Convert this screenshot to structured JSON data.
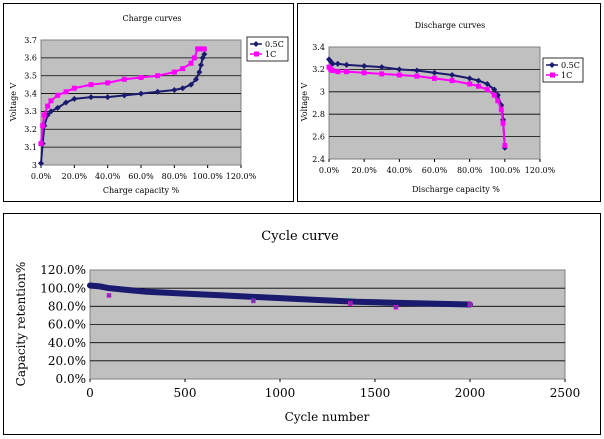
{
  "chart_data": [
    {
      "type": "line",
      "title": "Charge curves",
      "xlabel": "Charge capacity %",
      "ylabel": "Voltage V",
      "xlim": [
        0,
        1.2
      ],
      "ylim": [
        3.0,
        3.7
      ],
      "x_ticks": [
        "0.0%",
        "20.0%",
        "40.0%",
        "60.0%",
        "80.0%",
        "100.0%",
        "120.0%"
      ],
      "y_ticks": [
        "3",
        "3.1",
        "3.2",
        "3.3",
        "3.4",
        "3.5",
        "3.6",
        "3.7"
      ],
      "grid": true,
      "legend_position": "top-right",
      "series": [
        {
          "name": "0.5C",
          "color": "#1a1a6e",
          "marker": "diamond",
          "x": [
            0.0,
            0.01,
            0.02,
            0.04,
            0.06,
            0.1,
            0.15,
            0.2,
            0.3,
            0.4,
            0.5,
            0.6,
            0.7,
            0.8,
            0.85,
            0.9,
            0.93,
            0.95,
            0.96,
            0.97,
            0.98
          ],
          "y": [
            3.01,
            3.12,
            3.22,
            3.28,
            3.3,
            3.32,
            3.35,
            3.37,
            3.38,
            3.38,
            3.39,
            3.4,
            3.41,
            3.42,
            3.43,
            3.45,
            3.48,
            3.52,
            3.56,
            3.6,
            3.62
          ]
        },
        {
          "name": "1C",
          "color": "#ff00ff",
          "marker": "square",
          "x": [
            0.0,
            0.01,
            0.02,
            0.04,
            0.06,
            0.1,
            0.15,
            0.2,
            0.3,
            0.4,
            0.5,
            0.6,
            0.7,
            0.8,
            0.85,
            0.9,
            0.92,
            0.94,
            0.96,
            0.98
          ],
          "y": [
            3.12,
            3.22,
            3.28,
            3.33,
            3.36,
            3.39,
            3.41,
            3.43,
            3.45,
            3.46,
            3.48,
            3.49,
            3.5,
            3.52,
            3.54,
            3.57,
            3.6,
            3.65,
            3.65,
            3.65
          ]
        }
      ]
    },
    {
      "type": "line",
      "title": "Discharge curves",
      "xlabel": "Discharge capacity %",
      "ylabel": "Voltage V",
      "xlim": [
        0,
        1.2
      ],
      "ylim": [
        2.4,
        3.4
      ],
      "x_ticks": [
        "0.0%",
        "20.0%",
        "40.0%",
        "60.0%",
        "80.0%",
        "100.0%",
        "120.0%"
      ],
      "y_ticks": [
        "2.4",
        "2.6",
        "2.8",
        "3",
        "3.2",
        "3.4"
      ],
      "grid": true,
      "legend_position": "top-right",
      "series": [
        {
          "name": "0.5C",
          "color": "#1a1a6e",
          "marker": "diamond",
          "x": [
            0.0,
            0.01,
            0.02,
            0.05,
            0.1,
            0.2,
            0.3,
            0.4,
            0.5,
            0.6,
            0.7,
            0.8,
            0.85,
            0.9,
            0.94,
            0.96,
            0.98,
            0.99,
            1.0
          ],
          "y": [
            3.29,
            3.27,
            3.25,
            3.25,
            3.24,
            3.23,
            3.22,
            3.2,
            3.19,
            3.17,
            3.15,
            3.12,
            3.1,
            3.07,
            3.02,
            2.97,
            2.88,
            2.75,
            2.5
          ]
        },
        {
          "name": "1C",
          "color": "#ff00ff",
          "marker": "square",
          "x": [
            0.0,
            0.01,
            0.02,
            0.05,
            0.1,
            0.2,
            0.3,
            0.4,
            0.5,
            0.6,
            0.7,
            0.8,
            0.85,
            0.9,
            0.94,
            0.96,
            0.98,
            0.99,
            1.0
          ],
          "y": [
            3.22,
            3.2,
            3.19,
            3.18,
            3.18,
            3.17,
            3.16,
            3.15,
            3.14,
            3.12,
            3.1,
            3.07,
            3.05,
            3.02,
            2.97,
            2.92,
            2.84,
            2.72,
            2.52
          ]
        }
      ]
    },
    {
      "type": "line",
      "title": "Cycle curve",
      "xlabel": "Cycle number",
      "ylabel": "Capacity retention%",
      "xlim": [
        0,
        2500
      ],
      "ylim": [
        0,
        120
      ],
      "x_ticks": [
        "0",
        "500",
        "1000",
        "1500",
        "2000",
        "2500"
      ],
      "y_ticks": [
        "0.0%",
        "20.0%",
        "40.0%",
        "60.0%",
        "80.0%",
        "100.0%",
        "120.0%"
      ],
      "grid": true,
      "series": [
        {
          "color": "#1a1a6e",
          "x": [
            0,
            50,
            100,
            200,
            300,
            500,
            700,
            1000,
            1200,
            1400,
            1600,
            1800,
            2000
          ],
          "y": [
            103,
            102,
            100,
            98,
            96,
            94,
            92,
            89,
            87,
            85,
            84,
            83,
            82
          ]
        },
        {
          "color": "#6a3aa0",
          "marker": "square",
          "x": [
            100,
            860,
            1370,
            1610,
            2000
          ],
          "y": [
            92,
            86,
            83,
            79,
            82
          ]
        }
      ]
    }
  ]
}
